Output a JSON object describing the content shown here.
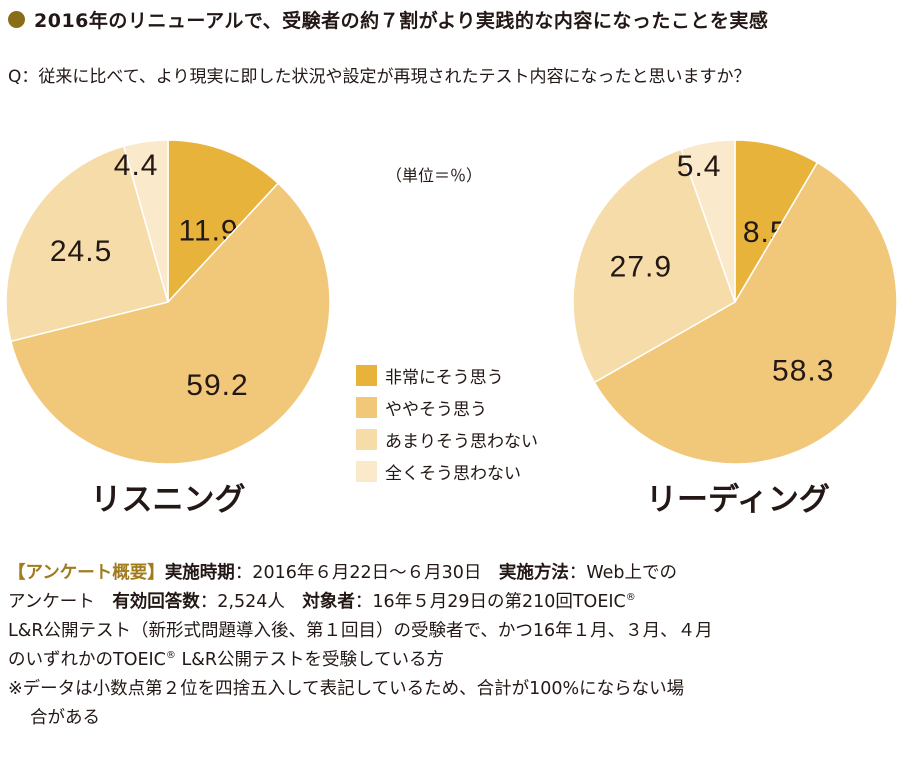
{
  "title": "2016年のリニューアルで、受験者の約７割がより実践的な内容になったことを実感",
  "question": "Q：従来に比べて、より現実に即した状況や設定が再現されたテスト内容になったと思いますか？",
  "unit": "（単位＝％）",
  "colors": {
    "bullet": "#8a6d19",
    "slice_1": "#e8b33b",
    "slice_2": "#f1c879",
    "slice_3": "#f6dca8",
    "slice_4": "#fae9ca"
  },
  "chart_data": [
    {
      "type": "pie",
      "label": "リスニング",
      "categories": [
        "非常にそう思う",
        "ややそう思う",
        "あまりそう思わない",
        "全くそう思わない"
      ],
      "values": [
        11.9,
        59.2,
        24.5,
        4.4
      ],
      "value_labels": [
        "11.9",
        "59.2",
        "24.5",
        "4.4"
      ]
    },
    {
      "type": "pie",
      "label": "リーディング",
      "categories": [
        "非常にそう思う",
        "ややそう思う",
        "あまりそう思わない",
        "全くそう思わない"
      ],
      "values": [
        8.5,
        58.3,
        27.9,
        5.4
      ],
      "value_labels": [
        "8.5",
        "58.3",
        "27.9",
        "5.4"
      ]
    }
  ],
  "legend": [
    "非常にそう思う",
    "ややそう思う",
    "あまりそう思わない",
    "全くそう思わない"
  ],
  "footer": {
    "survey_tag": "【アンケート概要】",
    "period_label": "実施時期",
    "period_value": "：2016年６月22日〜６月30日",
    "method_label": "実施方法",
    "method_value": "：Web上での",
    "method_value_cont": "アンケート",
    "answers_label": "有効回答数",
    "answers_value": "：2,524人",
    "target_label": "対象者",
    "target_value": "：16年５月29日の第210回TOEIC",
    "target_line2": "L&R公開テスト（新形式問題導入後、第１回目）の受験者で、かつ16年１月、３月、４月",
    "target_line3_a": "のいずれかのTOEIC",
    "target_line3_b": " L&R公開テストを受験している方",
    "registered_mark": "®",
    "note_line1": "※データは小数点第２位を四捨五入して表記しているため、合計が100%にならない場",
    "note_line2": "合がある"
  }
}
